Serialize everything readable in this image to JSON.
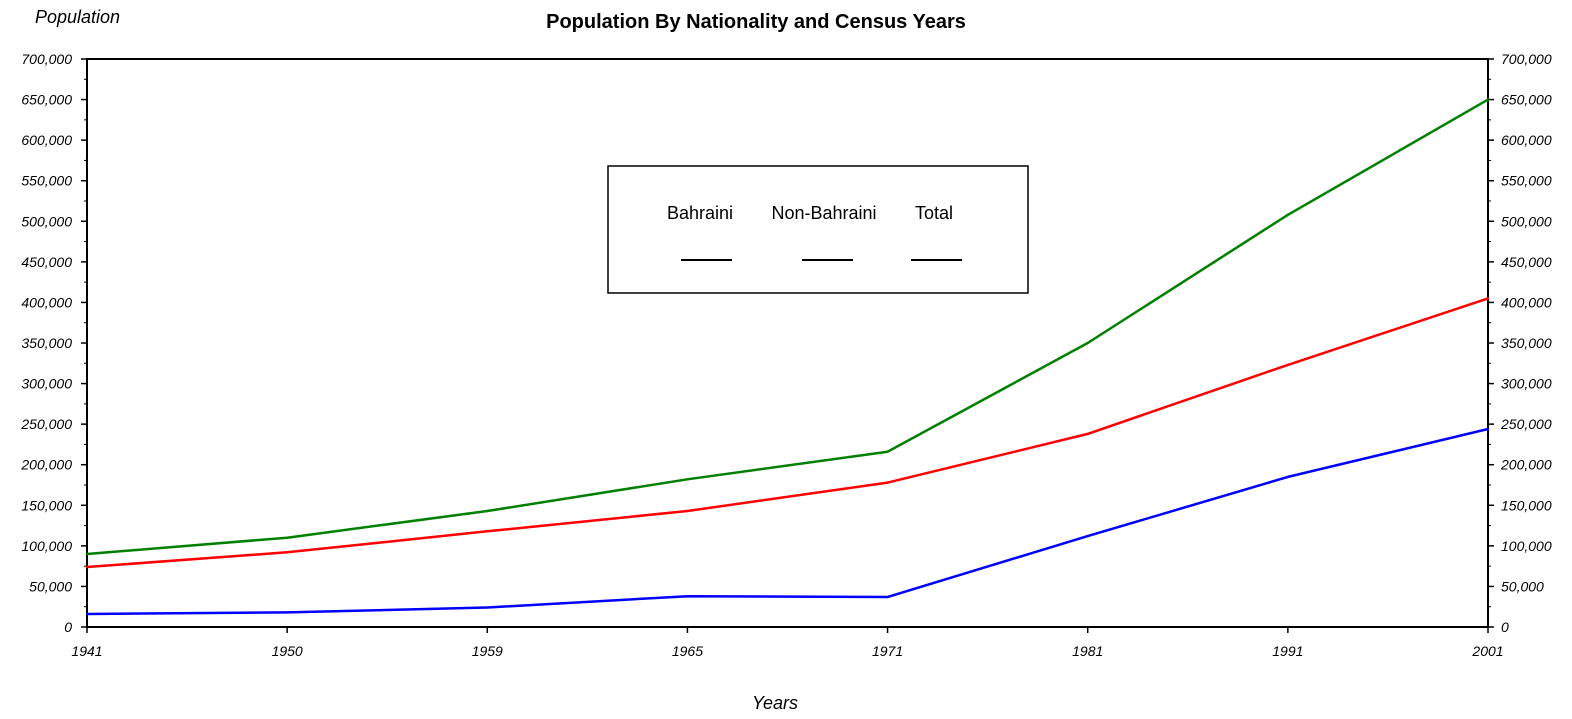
{
  "chart_data": {
    "type": "line",
    "title": "Population By Nationality and Census Years",
    "xlabel": "Years",
    "ylabel": "Population",
    "categories": [
      "1941",
      "1950",
      "1959",
      "1965",
      "1971",
      "1981",
      "1991",
      "2001"
    ],
    "ylim": [
      0,
      700000
    ],
    "yticks": [
      "0",
      "50,000",
      "100,000",
      "150,000",
      "200,000",
      "250,000",
      "300,000",
      "350,000",
      "400,000",
      "450,000",
      "500,000",
      "550,000",
      "600,000",
      "650,000",
      "700,000"
    ],
    "grid": false,
    "legend_placement": "top-center",
    "series": [
      {
        "name": "Bahraini",
        "color": "#ff0000",
        "values": [
          74000,
          92000,
          118000,
          143000,
          178000,
          238000,
          323000,
          405000
        ]
      },
      {
        "name": "Non-Bahraini",
        "color": "#0000ff",
        "values": [
          16000,
          18000,
          24000,
          38000,
          37000,
          112000,
          185000,
          244000
        ]
      },
      {
        "name": "Total",
        "color": "#008000",
        "values": [
          90000,
          110000,
          143000,
          182000,
          216000,
          350000,
          508000,
          650000
        ]
      }
    ]
  }
}
